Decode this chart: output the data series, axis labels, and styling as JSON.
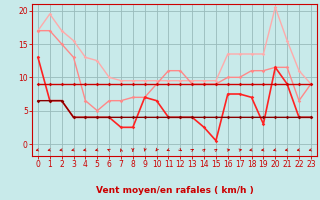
{
  "bg_color": "#c8eaea",
  "grid_color": "#99bbbb",
  "x_ticks": [
    0,
    1,
    2,
    3,
    4,
    5,
    6,
    7,
    8,
    9,
    10,
    11,
    12,
    13,
    14,
    15,
    16,
    17,
    18,
    19,
    20,
    21,
    22,
    23
  ],
  "xlabel": "Vent moyen/en rafales ( km/h )",
  "ylim": [
    0,
    21
  ],
  "yticks": [
    0,
    5,
    10,
    15,
    20
  ],
  "series": [
    {
      "name": "line1_light",
      "color": "#ffaaaa",
      "lw": 1.0,
      "marker": "D",
      "ms": 1.8,
      "data": [
        17,
        19.5,
        17,
        15.5,
        13,
        12.5,
        10,
        9.5,
        9.5,
        9.5,
        9.5,
        9.5,
        9.5,
        9.5,
        9.5,
        9.5,
        13.5,
        13.5,
        13.5,
        13.5,
        20.5,
        15.5,
        11,
        9
      ]
    },
    {
      "name": "line2_medium",
      "color": "#ff8888",
      "lw": 1.0,
      "marker": "D",
      "ms": 1.8,
      "data": [
        17,
        17,
        15,
        13,
        6.5,
        5,
        6.5,
        6.5,
        7,
        7,
        9,
        11,
        11,
        9,
        9,
        9,
        10,
        10,
        11,
        11,
        11.5,
        11.5,
        6.5,
        9
      ]
    },
    {
      "name": "line3_bright",
      "color": "#ff2222",
      "lw": 1.2,
      "marker": "D",
      "ms": 1.8,
      "data": [
        13,
        6.5,
        6.5,
        4,
        4,
        4,
        4,
        2.5,
        2.5,
        7,
        6.5,
        4,
        4,
        4,
        2.5,
        0.5,
        7.5,
        7.5,
        7,
        3,
        11.5,
        9,
        4,
        4
      ]
    },
    {
      "name": "line4_flat",
      "color": "#cc0000",
      "lw": 1.0,
      "marker": "D",
      "ms": 1.8,
      "data": [
        9,
        9,
        9,
        9,
        9,
        9,
        9,
        9,
        9,
        9,
        9,
        9,
        9,
        9,
        9,
        9,
        9,
        9,
        9,
        9,
        9,
        9,
        9,
        9
      ]
    },
    {
      "name": "line5_dark",
      "color": "#880000",
      "lw": 1.0,
      "marker": "D",
      "ms": 1.8,
      "data": [
        6.5,
        6.5,
        6.5,
        4,
        4,
        4,
        4,
        4,
        4,
        4,
        4,
        4,
        4,
        4,
        4,
        4,
        4,
        4,
        4,
        4,
        4,
        4,
        4,
        4
      ]
    }
  ],
  "arrow_angles": [
    200,
    200,
    195,
    200,
    195,
    200,
    145,
    100,
    270,
    260,
    250,
    215,
    305,
    50,
    60,
    55,
    10,
    15,
    195,
    190,
    200,
    195,
    195,
    200
  ],
  "xlabel_color": "#cc0000",
  "xlabel_fontsize": 6.5,
  "tick_fontsize": 5.5,
  "tick_color": "#cc0000",
  "spine_color": "#cc0000"
}
